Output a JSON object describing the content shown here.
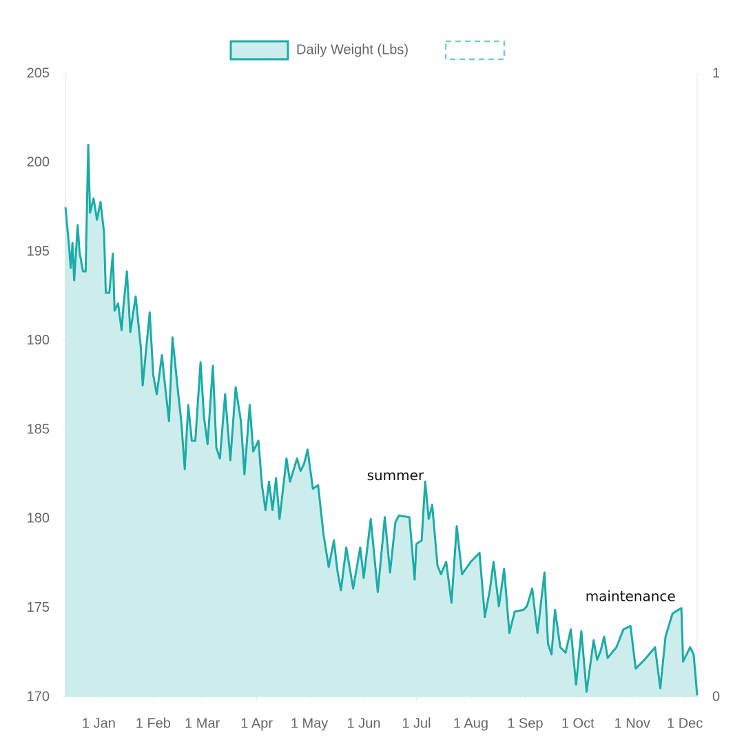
{
  "chart_data": {
    "type": "area",
    "series": [
      {
        "name": "Daily Weight (Lbs)",
        "color": "#1aaca8",
        "x": [
          -19,
          -17,
          -16,
          -15,
          -14,
          -12,
          -11,
          -9,
          -7.5,
          -6,
          -5,
          -3,
          -1,
          1,
          3,
          4,
          6,
          8,
          9,
          11,
          13,
          14,
          16,
          18,
          21,
          24,
          25,
          29,
          31,
          33,
          36,
          37,
          40,
          42,
          45,
          47,
          49,
          51,
          53,
          55,
          58,
          60,
          62,
          65,
          67,
          69,
          72,
          75,
          78,
          81,
          83,
          86,
          88,
          91,
          93,
          95,
          97,
          99,
          101,
          103,
          107,
          109,
          113,
          115,
          117,
          119,
          122,
          125,
          128,
          131,
          134,
          136,
          138,
          141,
          145,
          149,
          151,
          155,
          159,
          163,
          166,
          169,
          171,
          177,
          180,
          181,
          184,
          186,
          188,
          190,
          193,
          195,
          198,
          201,
          203,
          204,
          207,
          212,
          217,
          220,
          223,
          225,
          228,
          231,
          234,
          237,
          242,
          244,
          247,
          250,
          254,
          256,
          258,
          260,
          263,
          266,
          269,
          272,
          275,
          278,
          282,
          284,
          286,
          288,
          290,
          295,
          299,
          303,
          306,
          311,
          317,
          320,
          323,
          327,
          332,
          333,
          337,
          339,
          341
        ],
        "values": [
          197.5,
          195.4,
          194.1,
          195.5,
          193.4,
          196.5,
          195,
          193.9,
          193.9,
          201,
          197.2,
          198,
          196.8,
          197.8,
          196.1,
          192.7,
          192.7,
          194.9,
          191.7,
          192.1,
          190.6,
          191.9,
          193.9,
          190.5,
          192.5,
          189.6,
          187.5,
          191.6,
          188.1,
          187,
          189.2,
          188.2,
          185.5,
          190.2,
          187.3,
          185.5,
          182.8,
          186.4,
          184.4,
          184.4,
          188.8,
          185.7,
          184.2,
          188.6,
          184,
          183.4,
          187,
          183.3,
          187.4,
          185.5,
          182.5,
          186.4,
          183.8,
          184.4,
          181.9,
          180.5,
          182.1,
          180.5,
          182.3,
          180,
          183.4,
          182.1,
          183.4,
          182.7,
          183.1,
          183.9,
          181.7,
          181.9,
          179.2,
          177.3,
          178.8,
          177.1,
          176,
          178.4,
          176.1,
          178.4,
          176.7,
          180,
          175.9,
          180.1,
          177,
          179.8,
          180.2,
          180.1,
          176.6,
          178.6,
          178.8,
          182.1,
          180,
          180.8,
          177.4,
          176.9,
          177.6,
          175.3,
          178.2,
          179.6,
          176.9,
          177.6,
          178.1,
          174.5,
          176.1,
          177.6,
          175.1,
          177.2,
          173.6,
          174.8,
          174.9,
          175.1,
          176.1,
          173.6,
          177,
          173,
          172.4,
          174.9,
          172.8,
          172.5,
          173.8,
          170.7,
          173.7,
          170.3,
          173.2,
          172.1,
          172.6,
          173.4,
          172.2,
          172.8,
          173.8,
          174,
          171.6,
          172.1,
          172.8,
          170.5,
          173.4,
          174.7,
          175,
          172,
          172.8,
          172.4,
          170.1
        ]
      }
    ],
    "xlim": [
      -19,
      341
    ],
    "xticks": [
      {
        "value": 0,
        "label": "1 Jan"
      },
      {
        "value": 31,
        "label": "1 Feb"
      },
      {
        "value": 59,
        "label": "1 Mar"
      },
      {
        "value": 90,
        "label": "1 Apr"
      },
      {
        "value": 120,
        "label": "1 May"
      },
      {
        "value": 151,
        "label": "1 Jun"
      },
      {
        "value": 181,
        "label": "1 Jul"
      },
      {
        "value": 212,
        "label": "1 Aug"
      },
      {
        "value": 243,
        "label": "1 Sep"
      },
      {
        "value": 273,
        "label": "1 Oct"
      },
      {
        "value": 304,
        "label": "1 Nov"
      },
      {
        "value": 334,
        "label": "1 Dec"
      }
    ],
    "ylim": [
      170,
      205
    ],
    "yticks": [
      170,
      175,
      180,
      185,
      190,
      195,
      200,
      205
    ],
    "y2lim": [
      0,
      1
    ],
    "y2ticks": [
      0,
      1
    ],
    "legend": "top",
    "annotations": [
      {
        "text": "summer",
        "x": 169,
        "y": 182.4
      },
      {
        "text": "maintenance",
        "x": 303,
        "y": 175.6
      }
    ]
  }
}
